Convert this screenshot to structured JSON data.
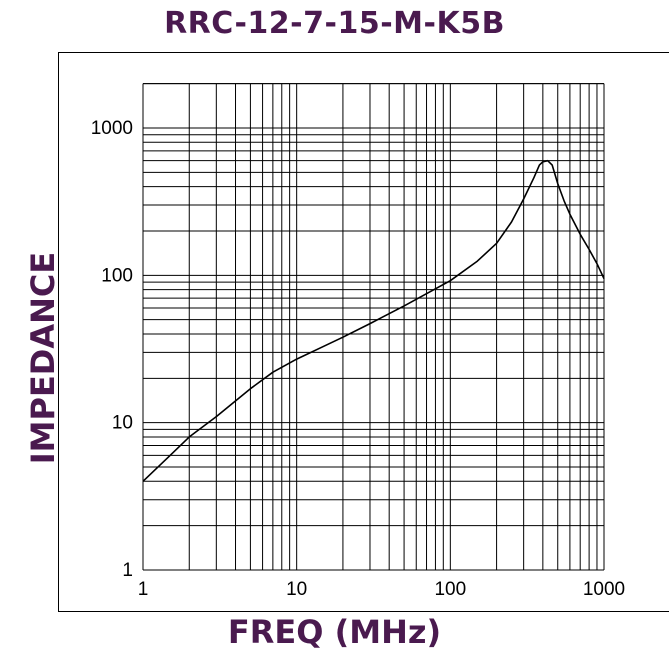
{
  "chart_data": {
    "type": "line",
    "title": "RRC-12-7-15-M-K5B",
    "xlabel": "FREQ (MHz)",
    "ylabel": "IMPEDANCE",
    "x_scale": "log",
    "y_scale": "log",
    "xlim": [
      1,
      1000
    ],
    "ylim": [
      1,
      2000
    ],
    "x_ticks": [
      "1",
      "10",
      "100",
      "1000"
    ],
    "y_ticks": [
      "1",
      "10",
      "100",
      "1000"
    ],
    "grid": true,
    "legend": "none",
    "series": [
      {
        "color": "#000000",
        "x": [
          1,
          1.5,
          2,
          3,
          5,
          7,
          10,
          15,
          20,
          30,
          50,
          70,
          100,
          150,
          200,
          250,
          300,
          350,
          380,
          400,
          430,
          460,
          500,
          550,
          600,
          700,
          800,
          900,
          1000
        ],
        "y": [
          4,
          6,
          8,
          11,
          17,
          22,
          27,
          33,
          38,
          47,
          62,
          75,
          92,
          125,
          165,
          230,
          330,
          460,
          560,
          590,
          600,
          560,
          420,
          320,
          260,
          190,
          150,
          120,
          95
        ]
      }
    ]
  },
  "colors": {
    "title": "#4a1a4f",
    "grid": "#000000",
    "line": "#000000"
  }
}
